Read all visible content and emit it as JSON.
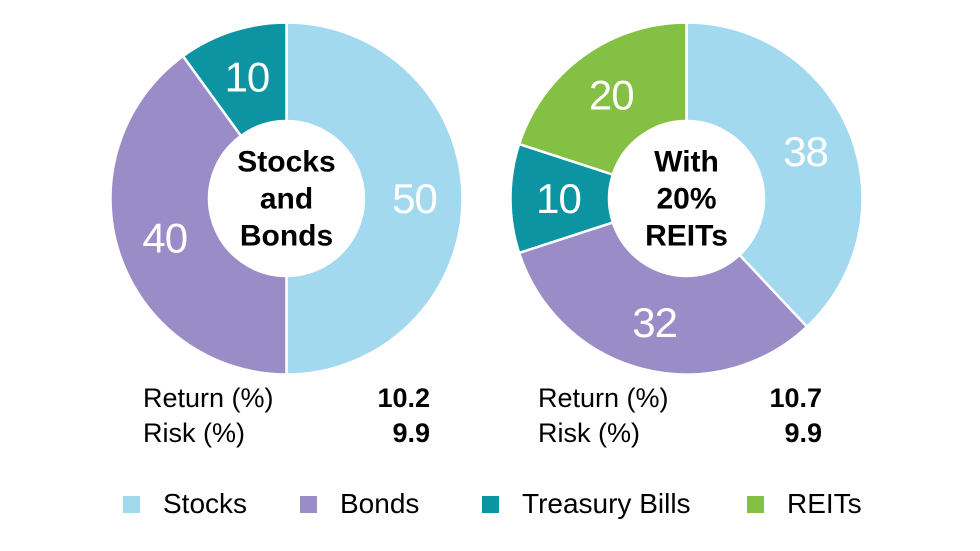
{
  "colors": {
    "stocks": "#A3D9EF",
    "bonds": "#9A8CC6",
    "treasury_bills": "#0C94A3",
    "reits": "#84C044",
    "slice_divider": "#FFFFFF",
    "slice_label_text": "#FFFFFF",
    "text": "#000000",
    "background": "#FFFFFF"
  },
  "chart_data": [
    {
      "type": "pie",
      "variant": "donut",
      "title": "Stocks and Bonds",
      "center_label_lines": [
        "Stocks",
        "and",
        "Bonds"
      ],
      "start_angle_deg": 0,
      "direction": "clockwise",
      "hole_ratio": 0.44,
      "slices": [
        {
          "label": "Stocks",
          "value": 50,
          "data_label": "50",
          "color_key": "stocks"
        },
        {
          "label": "Bonds",
          "value": 40,
          "data_label": "40",
          "color_key": "bonds"
        },
        {
          "label": "Treasury Bills",
          "value": 10,
          "data_label": "10",
          "color_key": "treasury_bills"
        }
      ],
      "stats": [
        {
          "label": "Return (%)",
          "value": "10.2"
        },
        {
          "label": "Risk (%)",
          "value": "9.9"
        }
      ]
    },
    {
      "type": "pie",
      "variant": "donut",
      "title": "With 20% REITs",
      "center_label_lines": [
        "With",
        "20%",
        "REITs"
      ],
      "start_angle_deg": 0,
      "direction": "clockwise",
      "hole_ratio": 0.44,
      "slices": [
        {
          "label": "Stocks",
          "value": 38,
          "data_label": "38",
          "color_key": "stocks"
        },
        {
          "label": "Bonds",
          "value": 32,
          "data_label": "32",
          "color_key": "bonds"
        },
        {
          "label": "Treasury Bills",
          "value": 10,
          "data_label": "10",
          "color_key": "treasury_bills"
        },
        {
          "label": "REITs",
          "value": 20,
          "data_label": "20",
          "color_key": "reits"
        }
      ],
      "stats": [
        {
          "label": "Return (%)",
          "value": "10.7"
        },
        {
          "label": "Risk (%)",
          "value": "9.9"
        }
      ]
    }
  ],
  "legend": {
    "position": "bottom",
    "items": [
      {
        "label": "Stocks",
        "color_key": "stocks"
      },
      {
        "label": "Bonds",
        "color_key": "bonds"
      },
      {
        "label": "Treasury Bills",
        "color_key": "treasury_bills"
      },
      {
        "label": "REITs",
        "color_key": "reits"
      }
    ]
  }
}
